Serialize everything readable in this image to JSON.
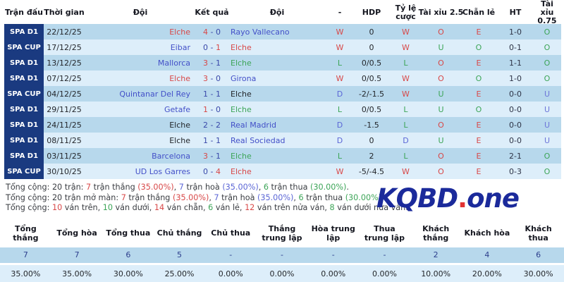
{
  "colors": {
    "red": "#d84848",
    "green": "#3da558",
    "blue": "#5b66d6",
    "purple": "#6e77d9",
    "team_blue": "#4350c8",
    "score_navy": "#3a49aa",
    "league_bg": "#1a3a80",
    "stripe_dark": "#b7d8ec",
    "stripe_light": "#ddeefa",
    "logo_navy": "#1b2a9b",
    "logo_dot": "#e23232"
  },
  "table": {
    "headers": {
      "league": "Trận đấu",
      "date": "Thời gian",
      "home": "Đội",
      "score": "Kết quả",
      "away": "Đội",
      "result": "-",
      "hdp": "HDP",
      "odds": "Tỷ lệ cược",
      "ou25": "Tài xỉu 2.5",
      "even_odd": "Chẵn lẻ",
      "ht": "HT",
      "ou075": "Tài xỉu 0.75"
    },
    "rows": [
      {
        "league": "SPA D1",
        "date": "22/12/25",
        "home": "Elche",
        "home_style": "win",
        "score_h": "4",
        "score_a": "0",
        "hl": "h",
        "away": "Rayo Vallecano",
        "away_style": "opp",
        "result": "W",
        "hdp": "0",
        "odds": "W",
        "ou25": "O",
        "even_odd": "E",
        "ht": "1-0",
        "ou075": "O"
      },
      {
        "league": "SPA CUP",
        "date": "17/12/25",
        "home": "Eibar",
        "home_style": "opp",
        "score_h": "0",
        "score_a": "1",
        "hl": "a",
        "away": "Elche",
        "away_style": "win",
        "result": "W",
        "hdp": "0",
        "odds": "W",
        "ou25": "U",
        "even_odd": "O",
        "ht": "0-1",
        "ou075": "O"
      },
      {
        "league": "SPA D1",
        "date": "13/12/25",
        "home": "Mallorca",
        "home_style": "opp",
        "score_h": "3",
        "score_a": "1",
        "hl": "h",
        "away": "Elche",
        "away_style": "loss",
        "result": "L",
        "hdp": "0/0.5",
        "odds": "L",
        "ou25": "O",
        "even_odd": "E",
        "ht": "1-1",
        "ou075": "O"
      },
      {
        "league": "SPA D1",
        "date": "07/12/25",
        "home": "Elche",
        "home_style": "win",
        "score_h": "3",
        "score_a": "0",
        "hl": "h",
        "away": "Girona",
        "away_style": "opp",
        "result": "W",
        "hdp": "0/0.5",
        "odds": "W",
        "ou25": "O",
        "even_odd": "O",
        "ht": "1-0",
        "ou075": "O"
      },
      {
        "league": "SPA CUP",
        "date": "04/12/25",
        "home": "Quintanar Del Rey",
        "home_style": "opp",
        "score_h": "1",
        "score_a": "1",
        "hl": "none",
        "away": "Elche",
        "away_style": "draw",
        "result": "D",
        "hdp": "-2/-1.5",
        "odds": "W",
        "ou25": "U",
        "even_odd": "E",
        "ht": "0-0",
        "ou075": "U"
      },
      {
        "league": "SPA D1",
        "date": "29/11/25",
        "home": "Getafe",
        "home_style": "opp",
        "score_h": "1",
        "score_a": "0",
        "hl": "h",
        "away": "Elche",
        "away_style": "loss",
        "result": "L",
        "hdp": "0/0.5",
        "odds": "L",
        "ou25": "U",
        "even_odd": "O",
        "ht": "0-0",
        "ou075": "U"
      },
      {
        "league": "SPA D1",
        "date": "24/11/25",
        "home": "Elche",
        "home_style": "draw",
        "score_h": "2",
        "score_a": "2",
        "hl": "none",
        "away": "Real Madrid",
        "away_style": "opp",
        "result": "D",
        "hdp": "-1.5",
        "odds": "L",
        "ou25": "O",
        "even_odd": "E",
        "ht": "0-0",
        "ou075": "U"
      },
      {
        "league": "SPA D1",
        "date": "08/11/25",
        "home": "Elche",
        "home_style": "draw",
        "score_h": "1",
        "score_a": "1",
        "hl": "none",
        "away": "Real Sociedad",
        "away_style": "opp",
        "result": "D",
        "hdp": "0",
        "odds": "D",
        "ou25": "U",
        "even_odd": "E",
        "ht": "0-0",
        "ou075": "U"
      },
      {
        "league": "SPA D1",
        "date": "03/11/25",
        "home": "Barcelona",
        "home_style": "opp",
        "score_h": "3",
        "score_a": "1",
        "hl": "h",
        "away": "Elche",
        "away_style": "loss",
        "result": "L",
        "hdp": "2",
        "odds": "L",
        "ou25": "O",
        "even_odd": "E",
        "ht": "2-1",
        "ou075": "O"
      },
      {
        "league": "SPA CUP",
        "date": "30/10/25",
        "home": "UD Los Garres",
        "home_style": "opp",
        "score_h": "0",
        "score_a": "4",
        "hl": "a",
        "away": "Elche",
        "away_style": "win",
        "result": "W",
        "hdp": "-5/-4.5",
        "odds": "W",
        "ou25": "O",
        "even_odd": "E",
        "ht": "0-3",
        "ou075": "O"
      }
    ]
  },
  "summary": {
    "lines": [
      [
        {
          "t": "Tổng cộng: 20 trận: ",
          "c": "text"
        },
        {
          "t": "7",
          "c": "red"
        },
        {
          "t": " trận thắng ",
          "c": "text"
        },
        {
          "t": "(35.00%)",
          "c": "red"
        },
        {
          "t": ", ",
          "c": "text"
        },
        {
          "t": "7",
          "c": "blue"
        },
        {
          "t": " trận hoà ",
          "c": "text"
        },
        {
          "t": "(35.00%)",
          "c": "blue"
        },
        {
          "t": ", ",
          "c": "text"
        },
        {
          "t": "6",
          "c": "green"
        },
        {
          "t": " trận thua ",
          "c": "text"
        },
        {
          "t": "(30.00%)",
          "c": "green"
        },
        {
          "t": ".",
          "c": "text"
        }
      ],
      [
        {
          "t": "Tổng cộng: 20 trận mở màn: ",
          "c": "text"
        },
        {
          "t": "7",
          "c": "red"
        },
        {
          "t": " trận thắng ",
          "c": "text"
        },
        {
          "t": "(35.00%)",
          "c": "red"
        },
        {
          "t": ", ",
          "c": "text"
        },
        {
          "t": "7",
          "c": "blue"
        },
        {
          "t": " trận hoà ",
          "c": "text"
        },
        {
          "t": "(35.00%)",
          "c": "blue"
        },
        {
          "t": ", ",
          "c": "text"
        },
        {
          "t": "6",
          "c": "green"
        },
        {
          "t": " trận thua ",
          "c": "text"
        },
        {
          "t": "(30.00%)",
          "c": "green"
        },
        {
          "t": ".",
          "c": "text"
        }
      ],
      [
        {
          "t": "Tổng cộng: ",
          "c": "text"
        },
        {
          "t": "10",
          "c": "red"
        },
        {
          "t": " ván trên, ",
          "c": "text"
        },
        {
          "t": "10",
          "c": "green"
        },
        {
          "t": " ván dưới, ",
          "c": "text"
        },
        {
          "t": "14",
          "c": "red"
        },
        {
          "t": " ván chẵn, ",
          "c": "text"
        },
        {
          "t": "6",
          "c": "green"
        },
        {
          "t": " ván lẻ, ",
          "c": "text"
        },
        {
          "t": "12",
          "c": "red"
        },
        {
          "t": " ván trên nửa ván, ",
          "c": "text"
        },
        {
          "t": "8",
          "c": "green"
        },
        {
          "t": " ván dưới nửa ván.",
          "c": "text"
        }
      ]
    ]
  },
  "watermark": {
    "text_primary": "KQBD",
    "dot": ".",
    "text_secondary": "one"
  },
  "stats_table": {
    "headers": [
      "Tổng thắng",
      "Tổng hòa",
      "Tổng thua",
      "Chủ thắng",
      "Chủ thua",
      "Thắng trung lập",
      "Hòa trung lập",
      "Thua trung lập",
      "Khách thắng",
      "Khách hòa",
      "Khách thua"
    ],
    "counts": [
      "7",
      "7",
      "6",
      "5",
      "-",
      "-",
      "-",
      "-",
      "2",
      "4",
      "6"
    ],
    "percents": [
      "35.00%",
      "35.00%",
      "30.00%",
      "25.00%",
      "0.00%",
      "0.00%",
      "0.00%",
      "0.00%",
      "10.00%",
      "20.00%",
      "30.00%"
    ]
  }
}
